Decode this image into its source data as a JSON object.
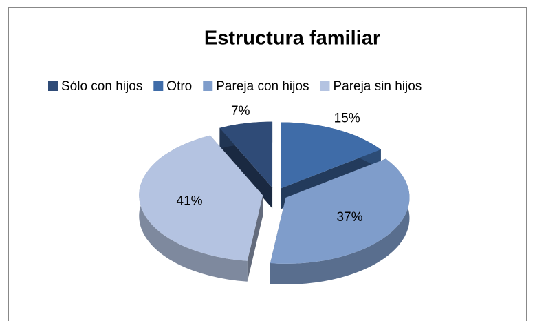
{
  "chart_data": {
    "type": "pie",
    "title": "Estructura familiar",
    "categories": [
      "Sólo con hijos",
      "Otro",
      "Pareja con hijos",
      "Pareja sin hijos"
    ],
    "values": [
      7,
      15,
      37,
      41
    ],
    "value_labels": [
      "7%",
      "15%",
      "37%",
      "41%"
    ],
    "colors": [
      "#2f4b77",
      "#3f6ca8",
      "#7f9dcb",
      "#b4c3e1"
    ],
    "legend": "top"
  }
}
